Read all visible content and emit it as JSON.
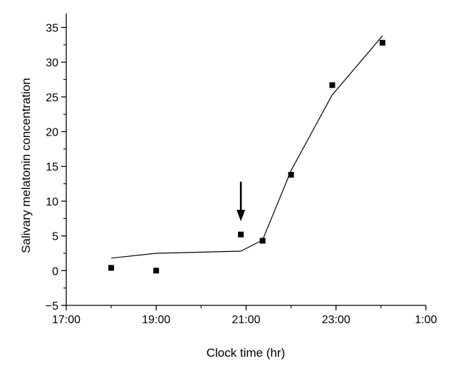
{
  "chart_data": {
    "type": "scatter",
    "xlabel": "Clock time (hr)",
    "ylabel": "Salivary melatonin concentration",
    "x_ticks": [
      "17:00",
      "19:00",
      "21:00",
      "23:00",
      "1:00"
    ],
    "x_tick_hours": [
      17,
      19,
      21,
      23,
      25
    ],
    "y_ticks": [
      -5,
      0,
      5,
      10,
      15,
      20,
      25,
      30,
      35
    ],
    "xlim": [
      17,
      25
    ],
    "ylim": [
      -5,
      37
    ],
    "grid": false,
    "legend": "none",
    "series": [
      {
        "type": "scatter",
        "marker": "square",
        "x": [
          "18:00",
          "19:00",
          "20:53",
          "21:22",
          "22:00",
          "22:55",
          "24:02"
        ],
        "y": [
          0.4,
          0.0,
          5.2,
          4.3,
          13.8,
          26.7,
          32.8
        ]
      },
      {
        "type": "line",
        "x": [
          "18:00",
          "19:00",
          "20:53",
          "21:22",
          "22:00",
          "22:55",
          "24:02"
        ],
        "y": [
          1.8,
          2.5,
          2.8,
          4.4,
          14.4,
          25.3,
          33.8
        ]
      }
    ],
    "annotations": [
      {
        "type": "arrow",
        "direction": "down",
        "x": "20:53",
        "y_from": 12.8,
        "y_to": 7.1
      }
    ],
    "colors": {
      "marks": "#000000",
      "axis": "#000000",
      "background": "#ffffff"
    }
  }
}
